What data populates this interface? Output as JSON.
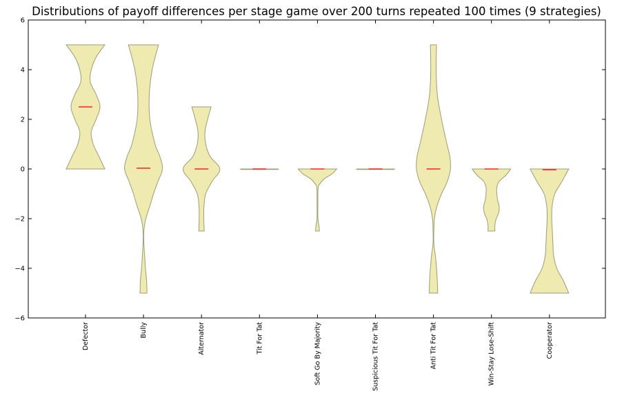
{
  "chart_data": {
    "type": "violin",
    "title": "Distributions of payoff differences per stage game over 200 turns repeated 100 times (9 strategies)",
    "xlabel": "",
    "ylabel": "",
    "ylim": [
      -6,
      6
    ],
    "yticks": [
      -6,
      -4,
      -2,
      0,
      2,
      4,
      6
    ],
    "grid": false,
    "fill_color": "#eeeab0",
    "edge_color": "#9c9c78",
    "median_color": "#ff2020",
    "categories": [
      "Defector",
      "Bully",
      "Alternator",
      "Tit For Tat",
      "Soft Go By Majority",
      "Suspicious Tit For Tat",
      "Anti Tit For Tat",
      "Win-Stay Lose-Shift",
      "Cooperator"
    ],
    "series": [
      {
        "category": "Defector",
        "median": 2.5,
        "profile": [
          [
            5.0,
            1.0
          ],
          [
            4.5,
            0.55
          ],
          [
            4.0,
            0.3
          ],
          [
            3.5,
            0.25
          ],
          [
            3.0,
            0.55
          ],
          [
            2.5,
            0.75
          ],
          [
            2.0,
            0.55
          ],
          [
            1.5,
            0.3
          ],
          [
            1.0,
            0.4
          ],
          [
            0.5,
            0.7
          ],
          [
            0.0,
            1.0
          ]
        ]
      },
      {
        "category": "Bully",
        "median": 0.03,
        "profile": [
          [
            5.0,
            0.78
          ],
          [
            4.0,
            0.45
          ],
          [
            3.0,
            0.3
          ],
          [
            2.0,
            0.33
          ],
          [
            1.0,
            0.6
          ],
          [
            0.5,
            0.85
          ],
          [
            0.0,
            0.98
          ],
          [
            -0.5,
            0.75
          ],
          [
            -1.0,
            0.52
          ],
          [
            -1.5,
            0.33
          ],
          [
            -2.0,
            0.12
          ],
          [
            -2.5,
            0.02
          ],
          [
            -3.0,
            0.01
          ],
          [
            -3.5,
            0.06
          ],
          [
            -4.0,
            0.1
          ],
          [
            -4.5,
            0.16
          ],
          [
            -5.0,
            0.18
          ]
        ]
      },
      {
        "category": "Alternator",
        "median": 0.0,
        "profile": [
          [
            2.5,
            0.5
          ],
          [
            2.0,
            0.32
          ],
          [
            1.5,
            0.18
          ],
          [
            1.0,
            0.22
          ],
          [
            0.5,
            0.45
          ],
          [
            0.0,
            0.95
          ],
          [
            -0.5,
            0.55
          ],
          [
            -1.0,
            0.22
          ],
          [
            -1.5,
            0.13
          ],
          [
            -2.0,
            0.12
          ],
          [
            -2.5,
            0.14
          ]
        ]
      },
      {
        "category": "Tit For Tat",
        "median": 0.0,
        "profile": [
          [
            0.0,
            1.0
          ],
          [
            -0.02,
            0.95
          ]
        ]
      },
      {
        "category": "Soft Go By Majority",
        "median": 0.0,
        "profile": [
          [
            0.0,
            1.0
          ],
          [
            -0.2,
            0.75
          ],
          [
            -0.4,
            0.35
          ],
          [
            -0.6,
            0.12
          ],
          [
            -0.8,
            0.03
          ],
          [
            -1.5,
            0.01
          ],
          [
            -2.0,
            0.02
          ],
          [
            -2.3,
            0.08
          ],
          [
            -2.5,
            0.1
          ]
        ]
      },
      {
        "category": "Suspicious Tit For Tat",
        "median": 0.0,
        "profile": [
          [
            0.0,
            1.0
          ],
          [
            -0.02,
            0.95
          ]
        ]
      },
      {
        "category": "Anti Tit For Tat",
        "median": 0.0,
        "profile": [
          [
            5.0,
            0.16
          ],
          [
            4.0,
            0.14
          ],
          [
            3.0,
            0.2
          ],
          [
            2.0,
            0.42
          ],
          [
            1.0,
            0.7
          ],
          [
            0.5,
            0.85
          ],
          [
            0.0,
            0.88
          ],
          [
            -0.5,
            0.72
          ],
          [
            -1.0,
            0.42
          ],
          [
            -1.5,
            0.18
          ],
          [
            -2.0,
            0.05
          ],
          [
            -2.5,
            0.01
          ],
          [
            -3.0,
            0.02
          ],
          [
            -3.5,
            0.1
          ],
          [
            -4.0,
            0.16
          ],
          [
            -4.5,
            0.2
          ],
          [
            -5.0,
            0.22
          ]
        ]
      },
      {
        "category": "Win-Stay Lose-Shift",
        "median": 0.0,
        "profile": [
          [
            0.0,
            1.0
          ],
          [
            -0.25,
            0.75
          ],
          [
            -0.5,
            0.4
          ],
          [
            -0.75,
            0.28
          ],
          [
            -1.0,
            0.28
          ],
          [
            -1.25,
            0.32
          ],
          [
            -1.5,
            0.4
          ],
          [
            -1.75,
            0.38
          ],
          [
            -2.0,
            0.25
          ],
          [
            -2.25,
            0.18
          ],
          [
            -2.5,
            0.18
          ]
        ]
      },
      {
        "category": "Cooperator",
        "median": -0.03,
        "profile": [
          [
            0.0,
            1.0
          ],
          [
            -0.5,
            0.65
          ],
          [
            -1.0,
            0.28
          ],
          [
            -1.5,
            0.14
          ],
          [
            -2.0,
            0.12
          ],
          [
            -2.5,
            0.15
          ],
          [
            -3.0,
            0.18
          ],
          [
            -3.5,
            0.22
          ],
          [
            -4.0,
            0.38
          ],
          [
            -4.5,
            0.72
          ],
          [
            -5.0,
            1.0
          ]
        ]
      }
    ]
  }
}
